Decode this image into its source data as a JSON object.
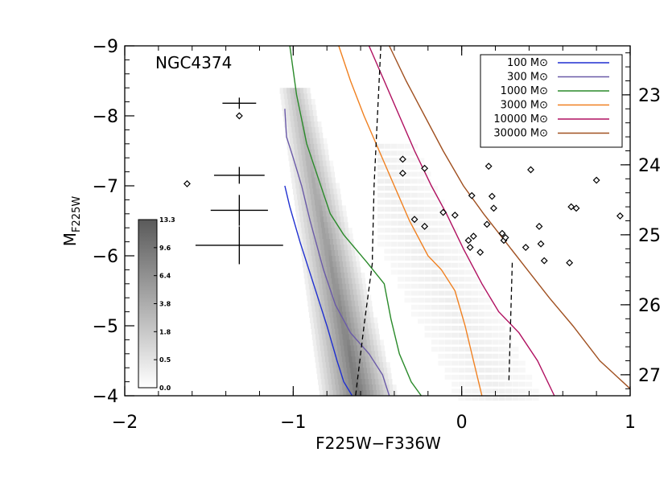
{
  "chart_data": {
    "type": "scatter",
    "annotation": "NGC4374",
    "xlabel": "F225W−F336W",
    "ylabel_main": "M",
    "ylabel_sub": "F225W",
    "xlim": [
      -2,
      1
    ],
    "ylim": [
      -4,
      -9
    ],
    "right_ylim": [
      27.3,
      22.3
    ],
    "x_ticks": [
      {
        "value": -2,
        "label": "−2"
      },
      {
        "value": -1,
        "label": "−1"
      },
      {
        "value": 0,
        "label": "0"
      },
      {
        "value": 1,
        "label": "1"
      }
    ],
    "y_ticks": [
      {
        "value": -9,
        "label": "−9"
      },
      {
        "value": -8,
        "label": "−8"
      },
      {
        "value": -7,
        "label": "−7"
      },
      {
        "value": -6,
        "label": "−6"
      },
      {
        "value": -5,
        "label": "−5"
      },
      {
        "value": -4,
        "label": "−4"
      }
    ],
    "right_ticks": [
      {
        "value": 23,
        "label": "23"
      },
      {
        "value": 24,
        "label": "24"
      },
      {
        "value": 25,
        "label": "25"
      },
      {
        "value": 26,
        "label": "26"
      },
      {
        "value": 27,
        "label": "27"
      }
    ],
    "legend_position": "top-right",
    "mass_unit": "M⊙",
    "series": [
      {
        "name": "100",
        "color": "#1f2fd0",
        "points": [
          [
            -1.05,
            -7.0
          ],
          [
            -1.02,
            -6.7
          ],
          [
            -0.96,
            -6.2
          ],
          [
            -0.88,
            -5.6
          ],
          [
            -0.8,
            -5.0
          ],
          [
            -0.74,
            -4.5
          ],
          [
            -0.7,
            -4.2
          ],
          [
            -0.65,
            -4.0
          ]
        ]
      },
      {
        "name": "300",
        "color": "#6a5aa8",
        "points": [
          [
            -1.05,
            -8.1
          ],
          [
            -1.04,
            -7.7
          ],
          [
            -1.0,
            -7.4
          ],
          [
            -0.95,
            -7.0
          ],
          [
            -0.9,
            -6.5
          ],
          [
            -0.82,
            -5.8
          ],
          [
            -0.75,
            -5.3
          ],
          [
            -0.66,
            -4.9
          ],
          [
            -0.55,
            -4.6
          ],
          [
            -0.47,
            -4.3
          ],
          [
            -0.43,
            -4.0
          ]
        ]
      },
      {
        "name": "1000",
        "color": "#2a8a2a",
        "points": [
          [
            -1.02,
            -9.0
          ],
          [
            -0.98,
            -8.3
          ],
          [
            -0.92,
            -7.6
          ],
          [
            -0.85,
            -7.1
          ],
          [
            -0.78,
            -6.6
          ],
          [
            -0.7,
            -6.3
          ],
          [
            -0.56,
            -5.9
          ],
          [
            -0.46,
            -5.6
          ],
          [
            -0.42,
            -5.1
          ],
          [
            -0.37,
            -4.6
          ],
          [
            -0.3,
            -4.2
          ],
          [
            -0.24,
            -4.0
          ]
        ]
      },
      {
        "name": "3000",
        "color": "#f08020",
        "points": [
          [
            -0.73,
            -9.0
          ],
          [
            -0.66,
            -8.5
          ],
          [
            -0.58,
            -8.0
          ],
          [
            -0.49,
            -7.5
          ],
          [
            -0.4,
            -7.0
          ],
          [
            -0.31,
            -6.5
          ],
          [
            -0.2,
            -6.0
          ],
          [
            -0.12,
            -5.8
          ],
          [
            -0.04,
            -5.5
          ],
          [
            0.02,
            -5.0
          ],
          [
            0.07,
            -4.5
          ],
          [
            0.12,
            -4.0
          ]
        ]
      },
      {
        "name": "10000",
        "color": "#b01060",
        "points": [
          [
            -0.55,
            -9.0
          ],
          [
            -0.46,
            -8.5
          ],
          [
            -0.37,
            -8.0
          ],
          [
            -0.28,
            -7.5
          ],
          [
            -0.18,
            -7.0
          ],
          [
            -0.09,
            -6.6
          ],
          [
            0.01,
            -6.1
          ],
          [
            0.12,
            -5.6
          ],
          [
            0.22,
            -5.2
          ],
          [
            0.34,
            -4.9
          ],
          [
            0.45,
            -4.5
          ],
          [
            0.55,
            -4.0
          ]
        ]
      },
      {
        "name": "30000",
        "color": "#a05020",
        "points": [
          [
            -0.43,
            -9.0
          ],
          [
            -0.33,
            -8.5
          ],
          [
            -0.22,
            -8.0
          ],
          [
            -0.11,
            -7.5
          ],
          [
            0.01,
            -7.0
          ],
          [
            0.13,
            -6.6
          ],
          [
            0.26,
            -6.2
          ],
          [
            0.39,
            -5.8
          ],
          [
            0.52,
            -5.4
          ],
          [
            0.66,
            -5.0
          ],
          [
            0.82,
            -4.5
          ],
          [
            1.0,
            -4.1
          ]
        ]
      }
    ],
    "dashed_lines": [
      [
        [
          -0.48,
          -9.0
        ],
        [
          -0.5,
          -8.0
        ],
        [
          -0.52,
          -7.0
        ],
        [
          -0.53,
          -6.0
        ],
        [
          -0.53,
          -5.9
        ],
        [
          -0.58,
          -5.0
        ],
        [
          -0.63,
          -4.0
        ]
      ],
      [
        [
          0.3,
          -5.9
        ],
        [
          0.28,
          -4.2
        ]
      ]
    ],
    "scatter_points": [
      [
        -1.63,
        -7.03
      ],
      [
        -1.32,
        -8.0
      ],
      [
        -0.35,
        -7.38
      ],
      [
        -0.35,
        -7.18
      ],
      [
        -0.22,
        -7.25
      ],
      [
        -0.28,
        -6.52
      ],
      [
        -0.22,
        -6.42
      ],
      [
        -0.11,
        -6.62
      ],
      [
        -0.04,
        -6.58
      ],
      [
        0.04,
        -6.22
      ],
      [
        0.05,
        -6.12
      ],
      [
        0.07,
        -6.28
      ],
      [
        0.06,
        -6.86
      ],
      [
        0.11,
        -6.05
      ],
      [
        0.15,
        -6.45
      ],
      [
        0.18,
        -6.85
      ],
      [
        0.19,
        -6.68
      ],
      [
        0.24,
        -6.32
      ],
      [
        0.25,
        -6.22
      ],
      [
        0.26,
        -6.26
      ],
      [
        0.16,
        -7.28
      ],
      [
        0.38,
        -6.12
      ],
      [
        0.41,
        -7.23
      ],
      [
        0.46,
        -6.42
      ],
      [
        0.47,
        -6.17
      ],
      [
        0.49,
        -5.93
      ],
      [
        0.64,
        -5.9
      ],
      [
        0.65,
        -6.7
      ],
      [
        0.68,
        -6.68
      ],
      [
        0.8,
        -7.08
      ],
      [
        0.94,
        -6.57
      ]
    ],
    "error_bars": [
      {
        "x": -1.32,
        "y": -8.18,
        "xerr": 0.1,
        "yerr": 0.08
      },
      {
        "x": -1.32,
        "y": -7.15,
        "xerr": 0.15,
        "yerr": 0.12
      },
      {
        "x": -1.32,
        "y": -6.65,
        "xerr": 0.17,
        "yerr": 0.22
      },
      {
        "x": -1.32,
        "y": -6.15,
        "xerr": 0.26,
        "yerr": 0.27
      }
    ],
    "colorbar": {
      "labels": [
        "13.3",
        "9.6",
        "6.4",
        "3.8",
        "1.8",
        "0.5",
        "0.0"
      ],
      "position": "left"
    }
  }
}
